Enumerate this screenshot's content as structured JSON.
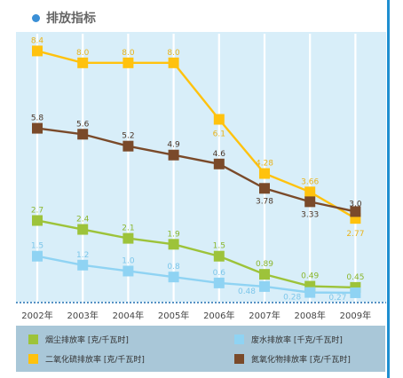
{
  "header": {
    "title": "排放指标"
  },
  "colors": {
    "plot_bg": "#d8eef9",
    "frame": "#1f8fd0",
    "legend_bg": "#a9c7d8"
  },
  "chart_data": {
    "type": "line",
    "title": "排放指标",
    "xlabel": "",
    "ylabel": "",
    "ylim": [
      0,
      8.8
    ],
    "grid": "vertical",
    "legend_position": "bottom",
    "categories": [
      "2002年",
      "2003年",
      "2004年",
      "2005年",
      "2006年",
      "2007年",
      "2008年",
      "2009年"
    ],
    "series": [
      {
        "name": "烟尘排放率 [克/千瓦时]",
        "color": "#9dc33a",
        "label_color": "#8bb62d",
        "values": [
          2.7,
          2.4,
          2.1,
          1.9,
          1.5,
          0.89,
          0.49,
          0.45
        ],
        "labels": [
          "2.7",
          "2.4",
          "2.1",
          "1.9",
          "1.5",
          "0.89",
          "0.49",
          "0.45"
        ]
      },
      {
        "name": "废水排放率 [千克/千瓦时]",
        "color": "#8fd3f3",
        "label_color": "#7cc6ea",
        "values": [
          1.5,
          1.2,
          1.0,
          0.8,
          0.6,
          0.48,
          0.28,
          0.27
        ],
        "labels": [
          "1.5",
          "1.2",
          "1.0",
          "0.8",
          "0.6",
          "0.48",
          "0.28",
          "0.27"
        ]
      },
      {
        "name": "二氧化硫排放率 [克/千瓦时]",
        "color": "#ffc20e",
        "label_color": "#e9b31a",
        "values": [
          8.4,
          8.0,
          8.0,
          8.0,
          6.1,
          4.28,
          3.66,
          2.77
        ],
        "labels": [
          "8.4",
          "8.0",
          "8.0",
          "8.0",
          "6.1",
          "4.28",
          "3.66",
          "2.77"
        ]
      },
      {
        "name": "氮氧化物排放率 [克/千瓦时]",
        "color": "#7a4a2a",
        "label_color": "#4a3426",
        "values": [
          5.8,
          5.6,
          5.2,
          4.9,
          4.6,
          3.78,
          3.33,
          3.0
        ],
        "labels": [
          "5.8",
          "5.6",
          "5.2",
          "4.9",
          "4.6",
          "3.78",
          "3.33",
          "3.0"
        ]
      }
    ]
  }
}
